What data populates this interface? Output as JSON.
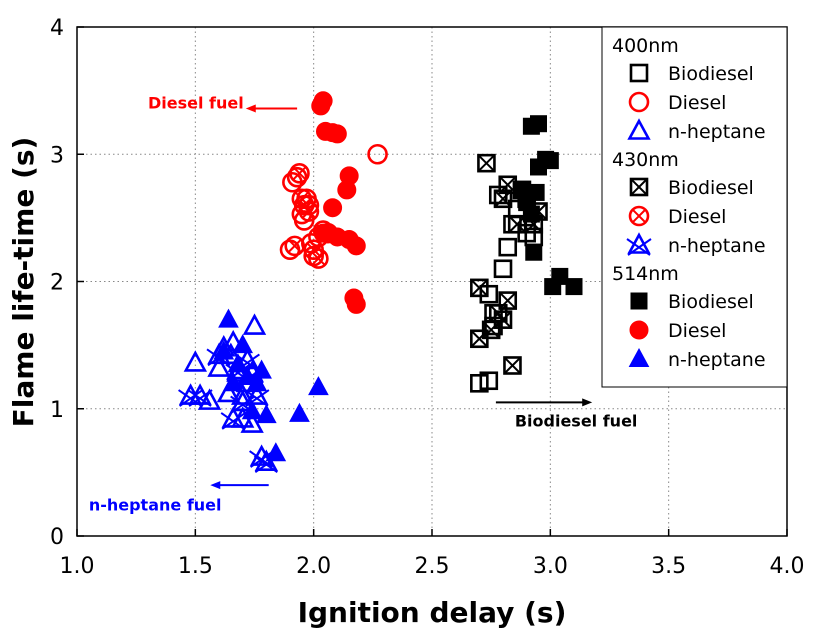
{
  "chart_data": {
    "type": "scatter",
    "title": "",
    "xlabel": "Ignition delay (s)",
    "ylabel": "Flame life-time (s)",
    "xlim": [
      1.0,
      4.0
    ],
    "ylim": [
      0,
      4
    ],
    "xticks": [
      "1.0",
      "1.5",
      "2.0",
      "2.5",
      "3.0",
      "3.5",
      "4.0"
    ],
    "yticks": [
      "0",
      "1",
      "2",
      "3",
      "4"
    ],
    "grid": "dotted",
    "legend_position": "top-right",
    "colors": {
      "Biodiesel": "#000000",
      "Diesel": "#ff0000",
      "n-heptane": "#0000ff"
    },
    "legend": [
      {
        "header": "400nm",
        "entries": [
          {
            "label": "Biodiesel",
            "fuel": "Biodiesel",
            "marker": "open-square"
          },
          {
            "label": "Diesel",
            "fuel": "Diesel",
            "marker": "open-circle"
          },
          {
            "label": "n-heptane",
            "fuel": "n-heptane",
            "marker": "open-triangle"
          }
        ]
      },
      {
        "header": "430nm",
        "entries": [
          {
            "label": "Biodiesel",
            "fuel": "Biodiesel",
            "marker": "crossed-square"
          },
          {
            "label": "Diesel",
            "fuel": "Diesel",
            "marker": "crossed-circle"
          },
          {
            "label": "n-heptane",
            "fuel": "n-heptane",
            "marker": "crossed-triangle"
          }
        ]
      },
      {
        "header": "514nm",
        "entries": [
          {
            "label": "Biodiesel",
            "fuel": "Biodiesel",
            "marker": "filled-square"
          },
          {
            "label": "Diesel",
            "fuel": "Diesel",
            "marker": "filled-circle"
          },
          {
            "label": "n-heptane",
            "fuel": "n-heptane",
            "marker": "filled-triangle"
          }
        ]
      }
    ],
    "annotations": [
      {
        "text": "Diesel fuel",
        "fuel": "Diesel",
        "at": [
          1.3,
          3.36
        ],
        "arrow_from": [
          1.93,
          3.36
        ],
        "arrow_to": [
          1.73,
          3.36
        ]
      },
      {
        "text": "n-heptane fuel",
        "fuel": "n-heptane",
        "at": [
          1.05,
          0.2
        ],
        "arrow_from": [
          1.81,
          0.4
        ],
        "arrow_to": [
          1.58,
          0.4
        ]
      },
      {
        "text": "Biodiesel fuel",
        "fuel": "Biodiesel",
        "at": [
          2.85,
          0.86
        ],
        "arrow_from": [
          2.77,
          1.05
        ],
        "arrow_to": [
          3.16,
          1.05
        ]
      }
    ],
    "series": [
      {
        "fuel": "Biodiesel",
        "marker": "open-square",
        "points": [
          [
            2.7,
            1.2
          ],
          [
            2.74,
            1.22
          ],
          [
            2.74,
            1.9
          ],
          [
            2.76,
            1.75
          ],
          [
            2.78,
            2.68
          ],
          [
            2.8,
            2.1
          ],
          [
            2.82,
            2.27
          ],
          [
            2.84,
            2.45
          ],
          [
            2.86,
            2.57
          ],
          [
            2.9,
            2.38
          ],
          [
            2.93,
            2.35
          ],
          [
            2.76,
            1.65
          ],
          [
            2.88,
            2.72
          ]
        ]
      },
      {
        "fuel": "Biodiesel",
        "marker": "crossed-square",
        "points": [
          [
            2.7,
            1.55
          ],
          [
            2.7,
            1.95
          ],
          [
            2.73,
            2.93
          ],
          [
            2.75,
            1.62
          ],
          [
            2.78,
            1.75
          ],
          [
            2.8,
            1.7
          ],
          [
            2.82,
            1.85
          ],
          [
            2.82,
            2.76
          ],
          [
            2.84,
            1.34
          ],
          [
            2.86,
            2.45
          ],
          [
            2.9,
            2.65
          ],
          [
            2.93,
            2.45
          ],
          [
            2.95,
            2.55
          ],
          [
            2.8,
            2.65
          ]
        ]
      },
      {
        "fuel": "Biodiesel",
        "marker": "filled-square",
        "points": [
          [
            2.92,
            3.22
          ],
          [
            2.95,
            3.24
          ],
          [
            2.9,
            2.62
          ],
          [
            2.92,
            2.53
          ],
          [
            2.93,
            2.23
          ],
          [
            2.95,
            2.9
          ],
          [
            2.98,
            2.96
          ],
          [
            3.0,
            2.95
          ],
          [
            3.01,
            1.96
          ],
          [
            3.04,
            2.04
          ],
          [
            3.1,
            1.96
          ],
          [
            2.88,
            2.72
          ],
          [
            2.94,
            2.7
          ]
        ]
      },
      {
        "fuel": "Diesel",
        "marker": "open-circle",
        "points": [
          [
            1.9,
            2.25
          ],
          [
            1.91,
            2.78
          ],
          [
            1.93,
            2.82
          ],
          [
            1.95,
            2.53
          ],
          [
            1.96,
            2.48
          ],
          [
            1.98,
            2.6
          ],
          [
            1.99,
            2.3
          ],
          [
            2.0,
            2.2
          ],
          [
            2.02,
            2.35
          ],
          [
            2.27,
            3.0
          ],
          [
            1.97,
            2.65
          ]
        ]
      },
      {
        "fuel": "Diesel",
        "marker": "crossed-circle",
        "points": [
          [
            1.92,
            2.28
          ],
          [
            1.94,
            2.85
          ],
          [
            1.96,
            2.6
          ],
          [
            1.98,
            2.55
          ],
          [
            2.0,
            2.25
          ],
          [
            2.02,
            2.18
          ],
          [
            2.04,
            2.4
          ],
          [
            2.06,
            2.38
          ],
          [
            1.95,
            2.65
          ]
        ]
      },
      {
        "fuel": "Diesel",
        "marker": "filled-circle",
        "points": [
          [
            2.03,
            3.38
          ],
          [
            2.04,
            3.42
          ],
          [
            2.05,
            3.18
          ],
          [
            2.08,
            3.17
          ],
          [
            2.1,
            3.16
          ],
          [
            2.15,
            2.83
          ],
          [
            2.14,
            2.72
          ],
          [
            2.08,
            2.58
          ],
          [
            2.1,
            2.35
          ],
          [
            2.15,
            2.33
          ],
          [
            2.18,
            2.28
          ],
          [
            2.17,
            1.87
          ],
          [
            2.18,
            1.82
          ],
          [
            2.04,
            2.38
          ]
        ]
      },
      {
        "fuel": "n-heptane",
        "marker": "open-triangle",
        "points": [
          [
            1.5,
            1.36
          ],
          [
            1.56,
            1.06
          ],
          [
            1.6,
            1.32
          ],
          [
            1.62,
            1.48
          ],
          [
            1.65,
            1.42
          ],
          [
            1.68,
            1.28
          ],
          [
            1.7,
            0.92
          ],
          [
            1.72,
            1.2
          ],
          [
            1.74,
            0.88
          ],
          [
            1.75,
            1.65
          ],
          [
            1.64,
            1.12
          ],
          [
            1.66,
            1.52
          ],
          [
            1.7,
            1.1
          ]
        ]
      },
      {
        "fuel": "n-heptane",
        "marker": "crossed-triangle",
        "points": [
          [
            1.48,
            1.1
          ],
          [
            1.52,
            1.1
          ],
          [
            1.6,
            1.42
          ],
          [
            1.66,
            0.92
          ],
          [
            1.7,
            1.05
          ],
          [
            1.72,
            1.38
          ],
          [
            1.76,
            1.1
          ],
          [
            1.78,
            0.62
          ],
          [
            1.8,
            0.58
          ],
          [
            1.68,
            1.3
          ],
          [
            1.74,
            1.28
          ]
        ]
      },
      {
        "fuel": "n-heptane",
        "marker": "filled-triangle",
        "points": [
          [
            1.62,
            1.45
          ],
          [
            1.64,
            1.7
          ],
          [
            1.66,
            1.2
          ],
          [
            1.68,
            1.35
          ],
          [
            1.7,
            1.5
          ],
          [
            1.72,
            1.25
          ],
          [
            1.76,
            1.2
          ],
          [
            1.8,
            0.95
          ],
          [
            1.84,
            0.65
          ],
          [
            1.94,
            0.96
          ],
          [
            2.02,
            1.17
          ],
          [
            1.78,
            1.3
          ],
          [
            1.74,
            0.98
          ]
        ]
      }
    ]
  }
}
